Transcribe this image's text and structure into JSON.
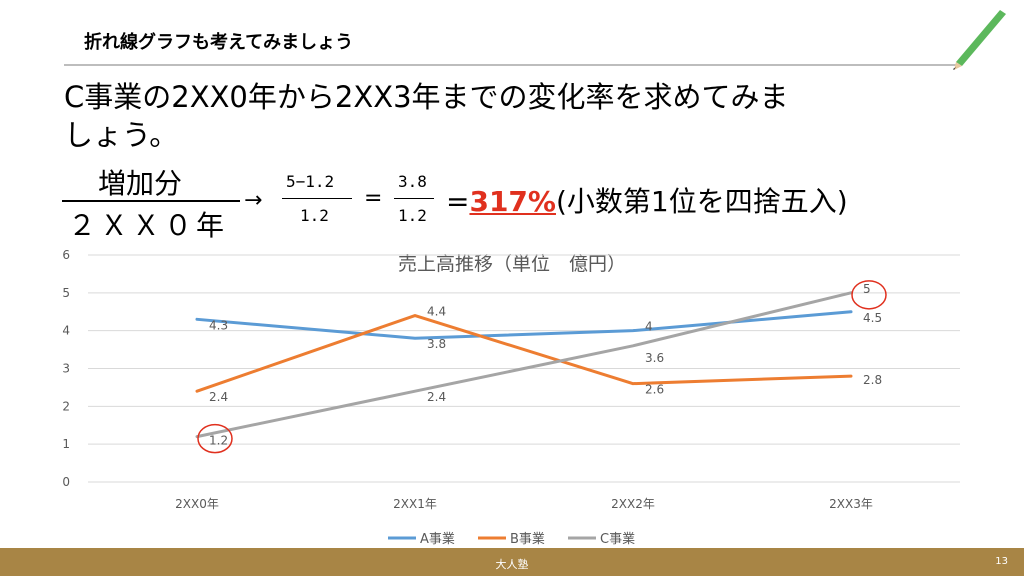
{
  "slide": {
    "title": "折れ線グラフも考えてみましょう",
    "question_line1": "C事業の2XX0年から2XX3年までの変化率を求めてみま",
    "question_line2": "しょう。",
    "fraction_numerator": "増加分",
    "fraction_denominator": "２ＸＸ０年",
    "arrow": "→",
    "calc_num": "5−1.2",
    "calc_den": "1.2",
    "equals": "=",
    "calc2_num": "3.8",
    "calc2_den": "1.2",
    "result_equals": "=",
    "result_value": "317%",
    "result_note": "(小数第1位を四捨五入)",
    "highlight_color": "#e0301e"
  },
  "footer": {
    "center_text": "大人塾",
    "page_number": "13",
    "background": "#a88545"
  },
  "chart_data": {
    "type": "line",
    "title": "売上高推移（単位　億円）",
    "categories": [
      "2XX0年",
      "2XX1年",
      "2XX2年",
      "2XX3年"
    ],
    "ylim": [
      0,
      6
    ],
    "yticks": [
      0,
      1,
      2,
      3,
      4,
      5,
      6
    ],
    "grid": true,
    "legend": "bottom",
    "series": [
      {
        "name": "A事業",
        "color": "#5b9bd5",
        "values": [
          4.3,
          3.8,
          4,
          4.5
        ]
      },
      {
        "name": "B事業",
        "color": "#ed7d31",
        "values": [
          2.4,
          4.4,
          2.6,
          2.8
        ]
      },
      {
        "name": "C事業",
        "color": "#a5a5a5",
        "values": [
          1.2,
          2.4,
          3.6,
          5
        ]
      }
    ],
    "highlighted_points": [
      {
        "series": "C事業",
        "category": "2XX0年"
      },
      {
        "series": "C事業",
        "category": "2XX3年"
      }
    ],
    "highlight_color": "#e0301e"
  }
}
